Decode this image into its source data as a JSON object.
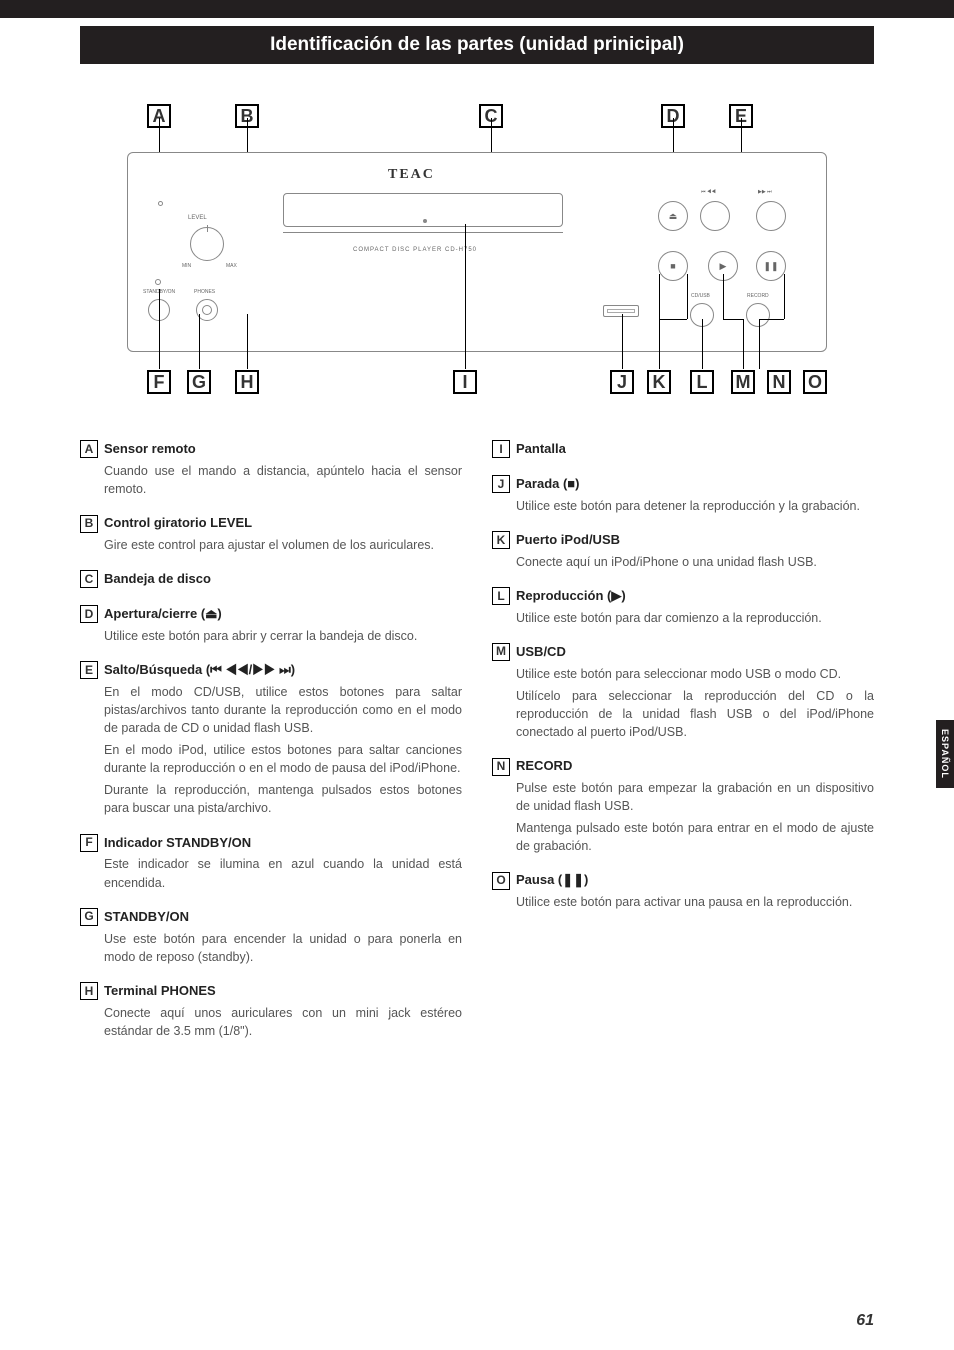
{
  "page_title": "Identificación de las partes (unidad prinicipal)",
  "side_tab": "ESPAÑOL",
  "page_number": "61",
  "diagram": {
    "brand": "TEAC",
    "model": "COMPACT DISC PLAYER CD-H750",
    "level_label": "LEVEL",
    "min": "MIN",
    "max": "MAX",
    "standby_label": "STANDBY/ON",
    "phones_label": "PHONES",
    "cd_usb_label": "CD/USB",
    "record_label": "RECORD",
    "skip_syms_left": "⏮ ◀◀",
    "skip_syms_right": "▶▶ ⏭",
    "eject_sym": "⏏",
    "stop_sym": "■",
    "play_sym": "▶",
    "pause_sym": "❚❚"
  },
  "labels": {
    "A": "A",
    "B": "B",
    "C": "C",
    "D": "D",
    "E": "E",
    "F": "F",
    "G": "G",
    "H": "H",
    "I": "I",
    "J": "J",
    "K": "K",
    "L": "L",
    "M": "M",
    "N": "N",
    "O": "O"
  },
  "items_left": [
    {
      "id": "A",
      "title": "Sensor remoto",
      "body": [
        "Cuando use el mando a distancia, apúntelo hacia el sensor remoto."
      ]
    },
    {
      "id": "B",
      "title": "Control giratorio LEVEL",
      "body": [
        "Gire este control para ajustar el volumen de los auriculares."
      ]
    },
    {
      "id": "C",
      "title": "Bandeja de disco",
      "body": []
    },
    {
      "id": "D",
      "title": "Apertura/cierre (⏏)",
      "body": [
        "Utilice este botón para abrir y cerrar la bandeja de disco."
      ]
    },
    {
      "id": "E",
      "title": "Salto/Búsqueda (⏮ ◀◀/▶▶ ⏭)",
      "body": [
        "En el modo CD/USB, utilice estos botones para saltar pistas/archivos tanto durante la reproducción como en el modo de parada de CD o unidad flash USB.",
        "En el modo iPod, utilice estos botones para saltar canciones durante la reproducción o en el modo de pausa del iPod/iPhone.",
        "Durante la reproducción, mantenga pulsados estos botones para buscar una pista/archivo."
      ]
    },
    {
      "id": "F",
      "title": "Indicador STANDBY/ON",
      "body": [
        "Este indicador se ilumina en azul cuando la unidad está encendida."
      ]
    },
    {
      "id": "G",
      "title": "STANDBY/ON",
      "body": [
        "Use este botón para encender la unidad o para ponerla en modo de reposo (standby)."
      ]
    },
    {
      "id": "H",
      "title": "Terminal PHONES",
      "body": [
        "Conecte aquí unos auriculares con un mini jack estéreo estándar de 3.5 mm (1/8\")."
      ]
    }
  ],
  "items_right": [
    {
      "id": "I",
      "title": "Pantalla",
      "body": []
    },
    {
      "id": "J",
      "title": "Parada (■)",
      "body": [
        "Utilice este botón para detener la reproducción y la grabación."
      ]
    },
    {
      "id": "K",
      "title": "Puerto iPod/USB",
      "body": [
        "Conecte aquí un iPod/iPhone o una unidad flash USB."
      ]
    },
    {
      "id": "L",
      "title": "Reproducción (▶)",
      "body": [
        "Utilice este botón para dar comienzo a la reproducción."
      ]
    },
    {
      "id": "M",
      "title": "USB/CD",
      "body": [
        "Utilice este botón para seleccionar modo USB o modo CD.",
        "Utilícelo para seleccionar la reproducción del CD o la reproducción de la unidad flash USB o del iPod/iPhone conectado al puerto iPod/USB."
      ]
    },
    {
      "id": "N",
      "title": "RECORD",
      "body": [
        "Pulse este botón para empezar la grabación en un dispositivo de unidad flash USB.",
        "Mantenga pulsado este botón para entrar en el modo de ajuste de grabación."
      ]
    },
    {
      "id": "O",
      "title": "Pausa (❚❚)",
      "body": [
        "Utilice este botón para activar una pausa en la reproducción."
      ]
    }
  ]
}
